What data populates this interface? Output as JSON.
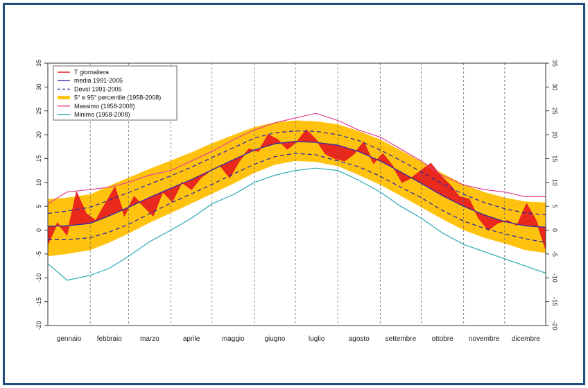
{
  "chart_data": {
    "type": "area",
    "x_axis": {
      "type": "day-of-year",
      "range": [
        1,
        365
      ],
      "month_labels": [
        "gennaio",
        "febbraio",
        "marzo",
        "aprile",
        "maggio",
        "giugno",
        "luglio",
        "agosto",
        "settembre",
        "ottobre",
        "novembre",
        "dicembre"
      ],
      "month_starts": [
        1,
        32,
        60,
        91,
        121,
        152,
        182,
        213,
        244,
        274,
        305,
        335
      ],
      "vertical_dashed_grid": true
    },
    "y_axis": {
      "range": [
        -20,
        35
      ],
      "ticks": [
        -20,
        -15,
        -10,
        -5,
        0,
        5,
        10,
        15,
        20,
        25,
        30,
        35
      ],
      "mirrored_right": true
    },
    "legend": {
      "placement": "top-left",
      "entries": [
        {
          "label": "T giornaliera",
          "color": "#e8211d",
          "style": "line"
        },
        {
          "label": "media 1991-2005",
          "color": "#2b2ba8",
          "style": "line"
        },
        {
          "label": "Devst 1991-2005",
          "color": "#2b2ba8",
          "style": "dashed"
        },
        {
          "label": "5° e 95° percentile (1958-2008)",
          "color": "#ffc20e",
          "style": "thick"
        },
        {
          "label": "Massimo (1958-2008)",
          "color": "#e5408f",
          "style": "line"
        },
        {
          "label": "Minimo (1958-2008)",
          "color": "#2aa9b7",
          "style": "line"
        }
      ]
    },
    "colors": {
      "daily": "#e8211d",
      "mean": "#2b2ba8",
      "percentile_band": "#ffc20e",
      "max": "#e5408f",
      "min": "#2aa9b7"
    },
    "series": [
      {
        "name": "media 1991-2005",
        "x": [
          1,
          15,
          32,
          46,
          60,
          75,
          91,
          106,
          121,
          137,
          152,
          167,
          182,
          197,
          213,
          228,
          244,
          259,
          274,
          289,
          305,
          320,
          335,
          350,
          365
        ],
        "values": [
          0.8,
          0.9,
          1.4,
          3.0,
          4.8,
          6.8,
          8.8,
          10.6,
          12.6,
          14.8,
          16.8,
          18.1,
          18.6,
          18.4,
          17.8,
          16.5,
          14.5,
          12.2,
          9.8,
          7.3,
          5.0,
          3.2,
          1.8,
          0.9,
          0.6
        ]
      },
      {
        "name": "Devst 1991-2005 (upper)",
        "x": [
          1,
          15,
          32,
          46,
          60,
          75,
          91,
          106,
          121,
          137,
          152,
          167,
          182,
          197,
          213,
          228,
          244,
          259,
          274,
          289,
          305,
          320,
          335,
          350,
          365
        ],
        "values": [
          3.5,
          4.0,
          4.8,
          6.3,
          7.9,
          9.6,
          11.4,
          13.2,
          15.2,
          17.3,
          19.3,
          20.4,
          20.8,
          20.7,
          20.0,
          18.8,
          16.8,
          14.6,
          12.2,
          9.8,
          7.5,
          5.8,
          4.5,
          3.6,
          3.2
        ]
      },
      {
        "name": "Devst 1991-2005 (lower)",
        "x": [
          1,
          15,
          32,
          46,
          60,
          75,
          91,
          106,
          121,
          137,
          152,
          167,
          182,
          197,
          213,
          228,
          244,
          259,
          274,
          289,
          305,
          320,
          335,
          350,
          365
        ],
        "values": [
          -2.0,
          -2.0,
          -1.6,
          -0.4,
          1.2,
          3.4,
          5.7,
          7.6,
          9.6,
          11.8,
          13.8,
          15.4,
          16.1,
          15.8,
          14.5,
          13.3,
          11.3,
          9.0,
          6.8,
          4.2,
          1.9,
          0.4,
          -0.8,
          -1.8,
          -2.6
        ]
      },
      {
        "name": "5° percentile (1958-2008)",
        "x": [
          1,
          15,
          32,
          46,
          60,
          75,
          91,
          106,
          121,
          137,
          152,
          167,
          182,
          197,
          213,
          228,
          244,
          259,
          274,
          289,
          305,
          320,
          335,
          350,
          365
        ],
        "values": [
          -5.5,
          -5.0,
          -4.2,
          -2.6,
          -0.7,
          1.5,
          3.6,
          5.6,
          7.6,
          9.8,
          12.0,
          13.7,
          14.5,
          14.3,
          13.4,
          11.6,
          9.5,
          7.2,
          4.8,
          2.4,
          0.0,
          -1.6,
          -2.8,
          -4.2,
          -4.8
        ]
      },
      {
        "name": "95° percentile (1958-2008)",
        "x": [
          1,
          15,
          32,
          46,
          60,
          75,
          91,
          106,
          121,
          137,
          152,
          167,
          182,
          197,
          213,
          228,
          244,
          259,
          274,
          289,
          305,
          320,
          335,
          350,
          365
        ],
        "values": [
          6.5,
          6.8,
          7.5,
          9.3,
          11.0,
          12.8,
          14.6,
          16.3,
          18.2,
          20.0,
          21.6,
          22.6,
          23.0,
          22.8,
          22.2,
          20.8,
          19.0,
          16.7,
          14.4,
          12.0,
          9.6,
          8.0,
          6.8,
          6.0,
          5.8
        ]
      },
      {
        "name": "Massimo (1958-2008)",
        "x": [
          1,
          15,
          32,
          46,
          60,
          75,
          91,
          106,
          121,
          137,
          152,
          167,
          182,
          197,
          213,
          228,
          244,
          259,
          274,
          289,
          305,
          320,
          335,
          350,
          365
        ],
        "values": [
          5.5,
          8.0,
          8.5,
          9.0,
          10.0,
          11.5,
          12.5,
          14.5,
          16.5,
          19.0,
          21.0,
          22.5,
          23.5,
          24.5,
          23.0,
          21.0,
          19.5,
          17.0,
          14.5,
          11.5,
          9.5,
          8.5,
          8.0,
          7.0,
          7.0
        ]
      },
      {
        "name": "Minimo (1958-2008)",
        "x": [
          1,
          15,
          32,
          46,
          60,
          75,
          91,
          106,
          121,
          137,
          152,
          167,
          182,
          197,
          213,
          228,
          244,
          259,
          274,
          289,
          305,
          320,
          335,
          350,
          365
        ],
        "values": [
          -7.0,
          -10.5,
          -9.5,
          -8.0,
          -5.5,
          -2.5,
          0.0,
          2.5,
          5.5,
          7.5,
          10.0,
          11.5,
          12.5,
          13.0,
          12.5,
          10.5,
          8.0,
          5.0,
          2.5,
          -0.5,
          -3.0,
          -4.5,
          -6.0,
          -7.5,
          -9.0
        ]
      },
      {
        "name": "T giornaliera",
        "x": [
          1,
          8,
          15,
          22,
          29,
          36,
          43,
          50,
          57,
          64,
          71,
          78,
          85,
          92,
          99,
          106,
          113,
          120,
          127,
          134,
          141,
          148,
          155,
          162,
          169,
          176,
          183,
          190,
          197,
          204,
          211,
          218,
          225,
          232,
          239,
          246,
          253,
          260,
          267,
          274,
          281,
          288,
          295,
          302,
          309,
          316,
          323,
          330,
          337,
          344,
          351,
          358,
          365
        ],
        "values": [
          -3.0,
          1.5,
          -1.0,
          8.0,
          3.5,
          2.0,
          5.5,
          9.0,
          3.0,
          7.0,
          5.0,
          3.0,
          8.0,
          6.0,
          10.0,
          8.5,
          11.0,
          12.5,
          13.5,
          11.0,
          14.5,
          17.0,
          16.5,
          20.0,
          19.0,
          17.0,
          18.5,
          21.0,
          19.0,
          16.0,
          15.0,
          14.5,
          16.0,
          18.5,
          14.0,
          16.0,
          13.5,
          10.0,
          11.0,
          12.5,
          14.0,
          11.5,
          9.5,
          7.0,
          6.5,
          2.5,
          0.0,
          1.5,
          2.0,
          1.0,
          5.5,
          2.0,
          -4.0
        ]
      }
    ]
  }
}
